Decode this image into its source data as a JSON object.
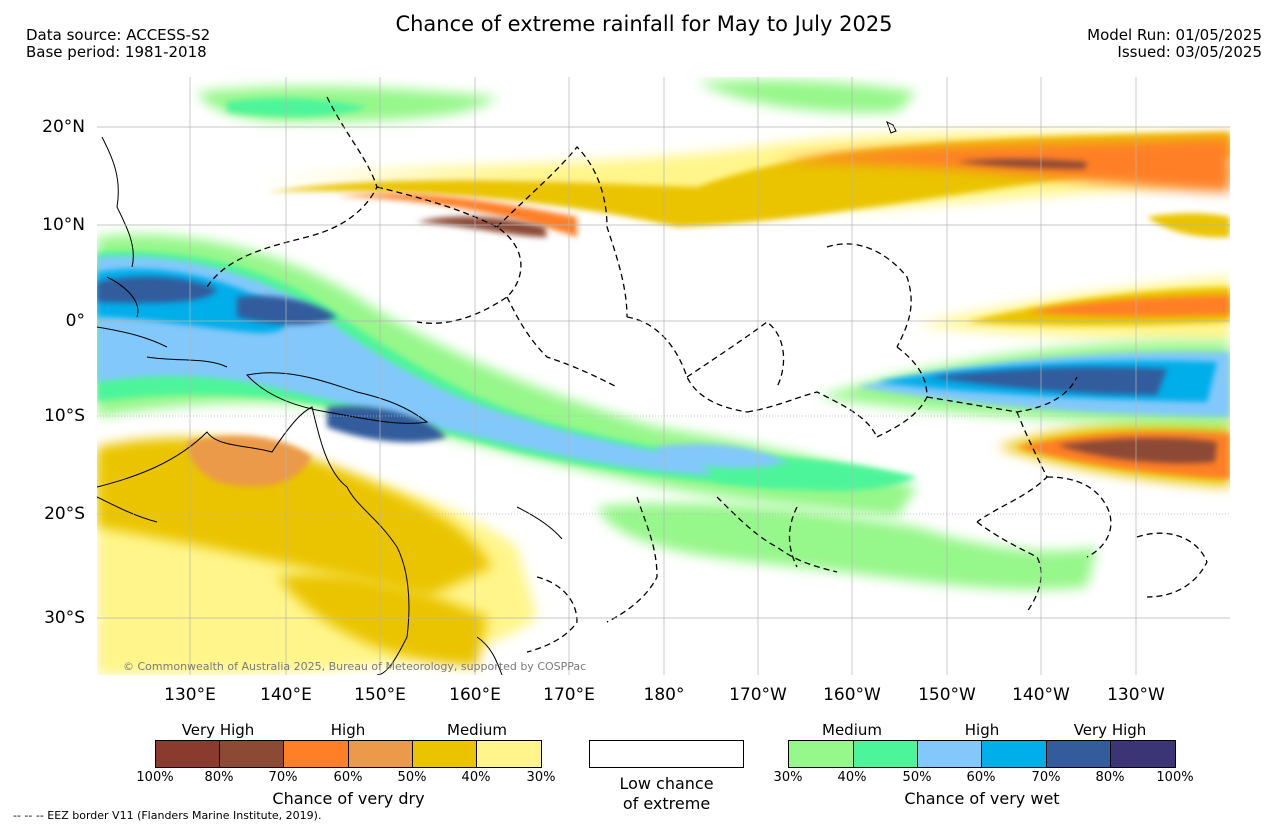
{
  "title": "Chance of extreme rainfall for May to July 2025",
  "data_source": "Data source: ACCESS-S2",
  "base_period": "Base period: 1981-2018",
  "model_run": "Model Run: 01/05/2025",
  "issued": "Issued: 03/05/2025",
  "lat_labels": [
    "20°N",
    "10°N",
    "0°",
    "10°S",
    "20°S",
    "30°S"
  ],
  "lon_labels": [
    "130°E",
    "140°E",
    "150°E",
    "160°E",
    "170°E",
    "180°",
    "170°W",
    "160°W",
    "150°W",
    "140°W",
    "130°W"
  ],
  "copyright": "© Commonwealth of Australia 2025, Bureau of Meteorology, supported by COSPPac",
  "legend": {
    "dry": {
      "categories": [
        "Very High",
        "High",
        "Medium"
      ],
      "colors": [
        "#8b3a2e",
        "#8c4a34",
        "#ff7f27",
        "#eb9a4a",
        "#eac400",
        "#fff58a"
      ],
      "ticks": [
        "100%",
        "80%",
        "70%",
        "60%",
        "50%",
        "40%",
        "30%"
      ],
      "title": "Chance of very dry"
    },
    "low": {
      "line1": "Low chance",
      "line2": "of extreme"
    },
    "wet": {
      "categories": [
        "Medium",
        "High",
        "Very High"
      ],
      "colors": [
        "#96f78a",
        "#4df59a",
        "#82c8fa",
        "#00aeea",
        "#335c9c",
        "#3c3575"
      ],
      "ticks": [
        "30%",
        "40%",
        "50%",
        "60%",
        "70%",
        "80%",
        "100%"
      ],
      "title": "Chance of very wet"
    }
  },
  "eez_note": "--  --  -- EEZ border V11 (Flanders Marine Institute, 2019)."
}
